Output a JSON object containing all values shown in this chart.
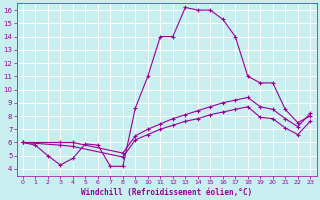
{
  "xlabel": "Windchill (Refroidissement éolien,°C)",
  "background_color": "#c8eef0",
  "line_color": "#990099",
  "grid_color": "#ffffff",
  "xlim": [
    -0.5,
    23.5
  ],
  "ylim": [
    3.5,
    16.5
  ],
  "xticks": [
    0,
    1,
    2,
    3,
    4,
    5,
    6,
    7,
    8,
    9,
    10,
    11,
    12,
    13,
    14,
    15,
    16,
    17,
    18,
    19,
    20,
    21,
    22,
    23
  ],
  "yticks": [
    4,
    5,
    6,
    7,
    8,
    9,
    10,
    11,
    12,
    13,
    14,
    15,
    16
  ],
  "line1_x": [
    0,
    1,
    2,
    3,
    4,
    5,
    6,
    7,
    8,
    9,
    10,
    11,
    12,
    13,
    14,
    15,
    16,
    17,
    18,
    19,
    20,
    21,
    22,
    23
  ],
  "line1_y": [
    6.0,
    5.8,
    5.0,
    4.3,
    4.8,
    5.9,
    5.8,
    4.2,
    4.2,
    8.6,
    11.0,
    14.0,
    14.0,
    16.2,
    16.0,
    16.0,
    15.3,
    14.0,
    11.0,
    10.5,
    10.5,
    8.5,
    7.5,
    8.0
  ],
  "line2_x": [
    0,
    3,
    4,
    8,
    9,
    10,
    11,
    12,
    13,
    14,
    15,
    16,
    17,
    18,
    19,
    20,
    21,
    22,
    23
  ],
  "line2_y": [
    6.0,
    6.0,
    6.0,
    5.2,
    6.5,
    7.0,
    7.4,
    7.8,
    8.1,
    8.4,
    8.7,
    9.0,
    9.2,
    9.4,
    8.7,
    8.5,
    7.8,
    7.2,
    8.2
  ],
  "line3_x": [
    0,
    3,
    4,
    8,
    9,
    10,
    11,
    12,
    13,
    14,
    15,
    16,
    17,
    18,
    19,
    20,
    21,
    22,
    23
  ],
  "line3_y": [
    6.0,
    5.8,
    5.7,
    4.9,
    6.2,
    6.6,
    7.0,
    7.3,
    7.6,
    7.8,
    8.1,
    8.3,
    8.5,
    8.7,
    7.9,
    7.8,
    7.1,
    6.6,
    7.6
  ]
}
